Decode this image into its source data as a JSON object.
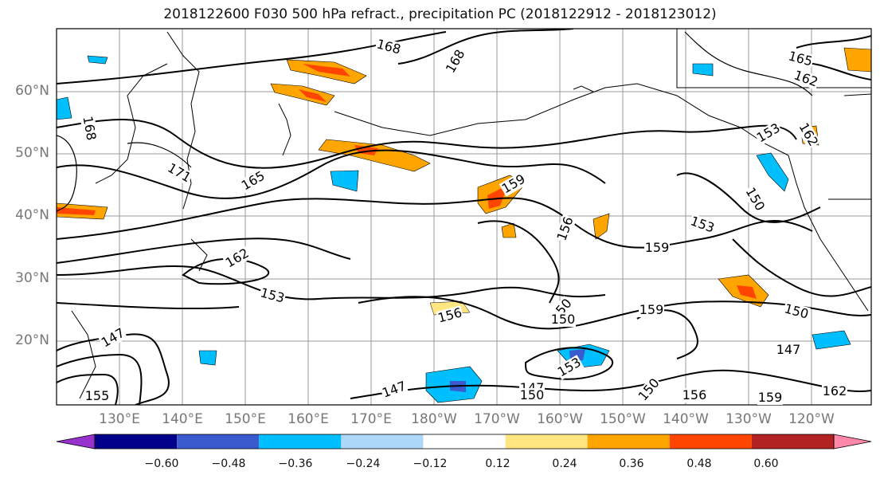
{
  "title": "2018122600 F030 500 hPa refract., precipitation PC (2018122912 - 2018123012)",
  "lat_labels": [
    "60°N",
    "50°N",
    "40°N",
    "30°N",
    "20°N"
  ],
  "lon_labels": [
    "130°E",
    "140°E",
    "150°E",
    "160°E",
    "170°E",
    "180°W",
    "170°W",
    "160°W",
    "150°W",
    "140°W",
    "130°W",
    "120°W"
  ],
  "contour_labels": [
    "168",
    "168",
    "165",
    "162",
    "168",
    "171",
    "165",
    "159",
    "156",
    "153",
    "159",
    "150",
    "150",
    "147",
    "150",
    "153",
    "147",
    "147",
    "159",
    "156",
    "159",
    "150",
    "156",
    "153",
    "150",
    "153",
    "162",
    "162",
    "147",
    "150",
    "162",
    "155"
  ],
  "colorbar": {
    "colors": [
      "#9932cc",
      "#00008b",
      "#3a5bcd",
      "#00bfff",
      "#add8f9",
      "#ffffff",
      "#ffe680",
      "#ffa500",
      "#ff4500",
      "#b22222",
      "#ff88aa"
    ],
    "labels": [
      "−0.60",
      "−0.48",
      "−0.36",
      "−0.24",
      "−0.12",
      "0.12",
      "0.24",
      "0.36",
      "0.48",
      "0.60"
    ]
  },
  "colors": {
    "land": "#ffffff",
    "grid": "#999999",
    "contour": "#000000"
  }
}
